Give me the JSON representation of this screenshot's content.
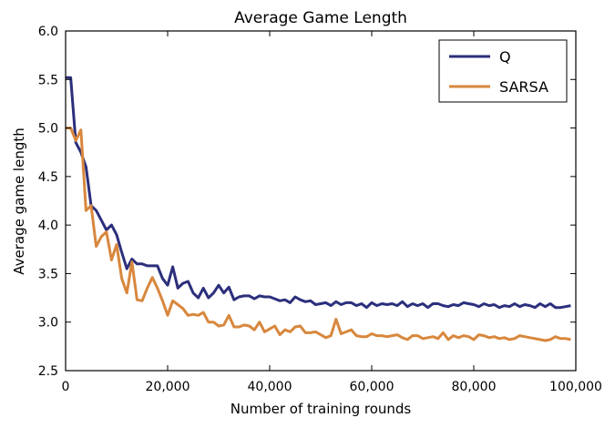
{
  "chart_data": {
    "type": "line",
    "title": "Average Game Length",
    "xlabel": "Number of training rounds",
    "ylabel": "Average game length",
    "xlim": [
      0,
      100000
    ],
    "ylim": [
      2.5,
      6.0
    ],
    "x_ticks": [
      0,
      20000,
      40000,
      60000,
      80000,
      100000
    ],
    "x_tick_labels": [
      "0",
      "20,000",
      "40,000",
      "60,000",
      "80,000",
      "100,000"
    ],
    "y_ticks": [
      2.5,
      3.0,
      3.5,
      4.0,
      4.5,
      5.0,
      5.5,
      6.0
    ],
    "y_tick_labels": [
      "2.5",
      "3.0",
      "3.5",
      "4.0",
      "4.5",
      "5.0",
      "5.5",
      "6.0"
    ],
    "grid": false,
    "legend_position": "top-right",
    "x": [
      0,
      1000,
      2000,
      3000,
      4000,
      5000,
      6000,
      7000,
      8000,
      9000,
      10000,
      11000,
      12000,
      13000,
      14000,
      15000,
      16000,
      17000,
      18000,
      19000,
      20000,
      21000,
      22000,
      23000,
      24000,
      25000,
      26000,
      27000,
      28000,
      29000,
      30000,
      31000,
      32000,
      33000,
      34000,
      35000,
      36000,
      37000,
      38000,
      39000,
      40000,
      41000,
      42000,
      43000,
      44000,
      45000,
      46000,
      47000,
      48000,
      49000,
      50000,
      51000,
      52000,
      53000,
      54000,
      55000,
      56000,
      57000,
      58000,
      59000,
      60000,
      61000,
      62000,
      63000,
      64000,
      65000,
      66000,
      67000,
      68000,
      69000,
      70000,
      71000,
      72000,
      73000,
      74000,
      75000,
      76000,
      77000,
      78000,
      79000,
      80000,
      81000,
      82000,
      83000,
      84000,
      85000,
      86000,
      87000,
      88000,
      89000,
      90000,
      91000,
      92000,
      93000,
      94000,
      95000,
      96000,
      97000,
      98000,
      99000
    ],
    "series": [
      {
        "name": "Q",
        "color": "#2c2f7c",
        "values": [
          5.52,
          5.52,
          4.85,
          4.75,
          4.6,
          4.2,
          4.15,
          4.05,
          3.95,
          4.0,
          3.9,
          3.72,
          3.55,
          3.65,
          3.6,
          3.6,
          3.58,
          3.58,
          3.58,
          3.45,
          3.38,
          3.57,
          3.35,
          3.4,
          3.42,
          3.3,
          3.25,
          3.35,
          3.25,
          3.3,
          3.38,
          3.3,
          3.36,
          3.23,
          3.26,
          3.27,
          3.27,
          3.24,
          3.27,
          3.26,
          3.26,
          3.24,
          3.22,
          3.23,
          3.2,
          3.26,
          3.23,
          3.21,
          3.22,
          3.18,
          3.19,
          3.2,
          3.17,
          3.21,
          3.18,
          3.2,
          3.2,
          3.17,
          3.19,
          3.15,
          3.2,
          3.17,
          3.19,
          3.18,
          3.19,
          3.17,
          3.21,
          3.16,
          3.19,
          3.17,
          3.19,
          3.15,
          3.19,
          3.19,
          3.17,
          3.16,
          3.18,
          3.17,
          3.2,
          3.19,
          3.18,
          3.16,
          3.19,
          3.17,
          3.18,
          3.15,
          3.17,
          3.16,
          3.19,
          3.16,
          3.18,
          3.17,
          3.15,
          3.19,
          3.16,
          3.19,
          3.15,
          3.15,
          3.16,
          3.17
        ]
      },
      {
        "name": "SARSA",
        "color": "#d8873d",
        "values": [
          5.0,
          5.0,
          4.87,
          4.98,
          4.15,
          4.2,
          3.78,
          3.88,
          3.93,
          3.64,
          3.8,
          3.45,
          3.3,
          3.62,
          3.23,
          3.22,
          3.35,
          3.46,
          3.35,
          3.22,
          3.07,
          3.22,
          3.18,
          3.14,
          3.07,
          3.08,
          3.07,
          3.1,
          3.0,
          3.0,
          2.96,
          2.97,
          3.07,
          2.95,
          2.95,
          2.97,
          2.96,
          2.92,
          3.0,
          2.9,
          2.93,
          2.96,
          2.87,
          2.92,
          2.9,
          2.95,
          2.96,
          2.89,
          2.89,
          2.9,
          2.87,
          2.84,
          2.86,
          3.03,
          2.88,
          2.9,
          2.92,
          2.86,
          2.85,
          2.85,
          2.88,
          2.86,
          2.86,
          2.85,
          2.86,
          2.87,
          2.84,
          2.82,
          2.86,
          2.86,
          2.83,
          2.84,
          2.85,
          2.83,
          2.89,
          2.82,
          2.86,
          2.84,
          2.86,
          2.85,
          2.82,
          2.87,
          2.86,
          2.84,
          2.85,
          2.83,
          2.84,
          2.82,
          2.83,
          2.86,
          2.85,
          2.84,
          2.83,
          2.82,
          2.81,
          2.82,
          2.85,
          2.83,
          2.83,
          2.82
        ]
      }
    ]
  }
}
